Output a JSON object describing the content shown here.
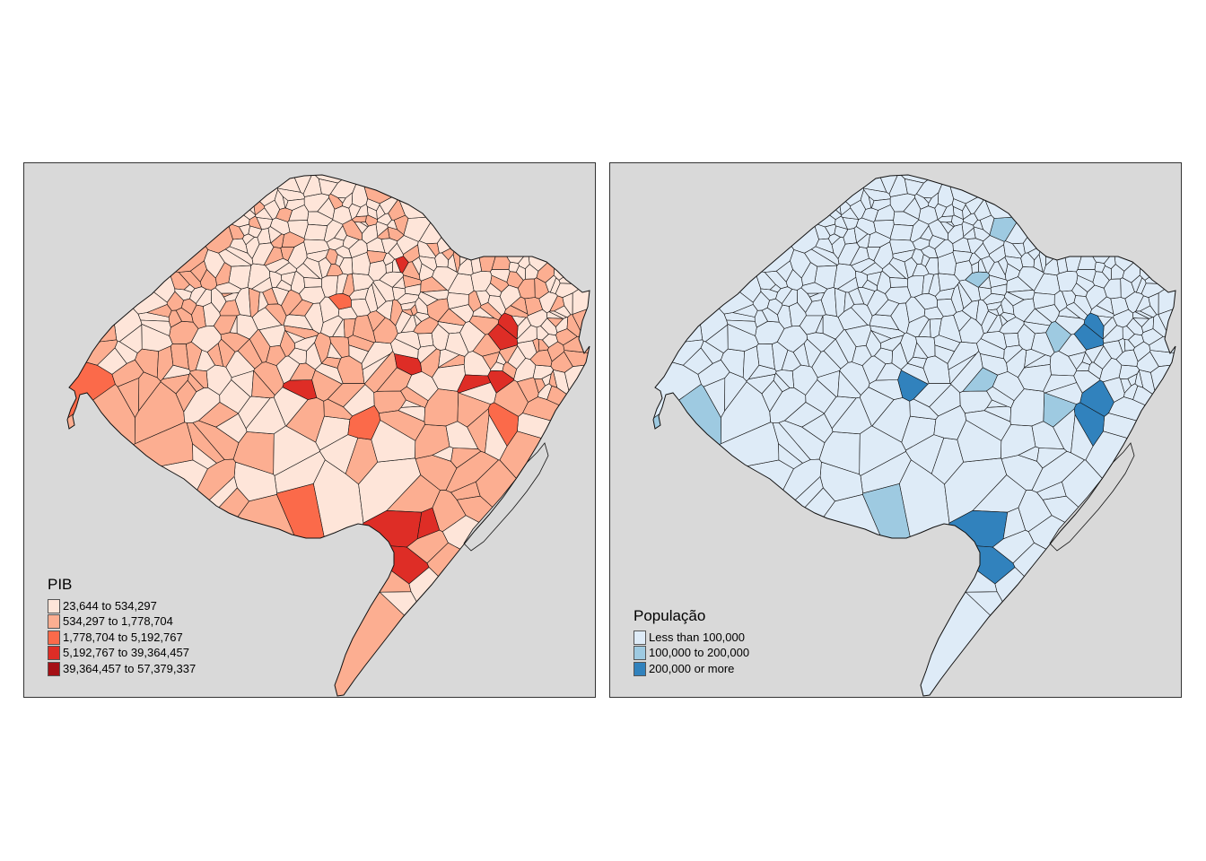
{
  "maps": [
    {
      "legend_title": "PIB",
      "legend_items": [
        {
          "label": "23,644 to 534,297",
          "color": "#fee5d9"
        },
        {
          "label": "534,297 to 1,778,704",
          "color": "#fcae91"
        },
        {
          "label": "1,778,704 to 5,192,767",
          "color": "#fb6a4a"
        },
        {
          "label": "5,192,767 to 39,364,457",
          "color": "#de2d26"
        },
        {
          "label": "39,364,457 to 57,379,337",
          "color": "#a50f15"
        }
      ]
    },
    {
      "legend_title": "População",
      "legend_items": [
        {
          "label": "Less than 100,000",
          "color": "#deebf7"
        },
        {
          "label": "100,000 to 200,000",
          "color": "#9ecae1"
        },
        {
          "label": "200,000 or more",
          "color": "#3182bd"
        }
      ]
    }
  ],
  "colors": {
    "background": "#d9d9d9",
    "border": "#000000",
    "pib_base": "#fee5d9",
    "pop_base": "#deebf7"
  }
}
